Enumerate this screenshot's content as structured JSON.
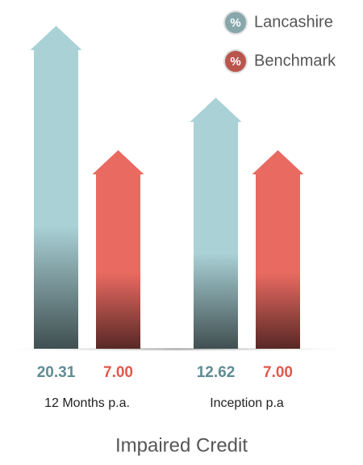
{
  "chart_data": {
    "type": "arrow_bar",
    "title": "Impaired Credit",
    "categories": [
      "12 Months p.a.",
      "Inception p.a"
    ],
    "legend_icon": "%",
    "legend_position": "top-right",
    "series": [
      {
        "name": "Lancashire",
        "color": "#a9d1d6",
        "label_color": "#5f8c92",
        "values": [
          20.31,
          12.62
        ],
        "value_labels": [
          "20.31",
          "12.62"
        ]
      },
      {
        "name": "Benchmark",
        "color": "#e86a61",
        "label_color": "#e0584e",
        "values": [
          7.0,
          7.0
        ],
        "value_labels": [
          "7.00",
          "7.00"
        ]
      }
    ]
  }
}
